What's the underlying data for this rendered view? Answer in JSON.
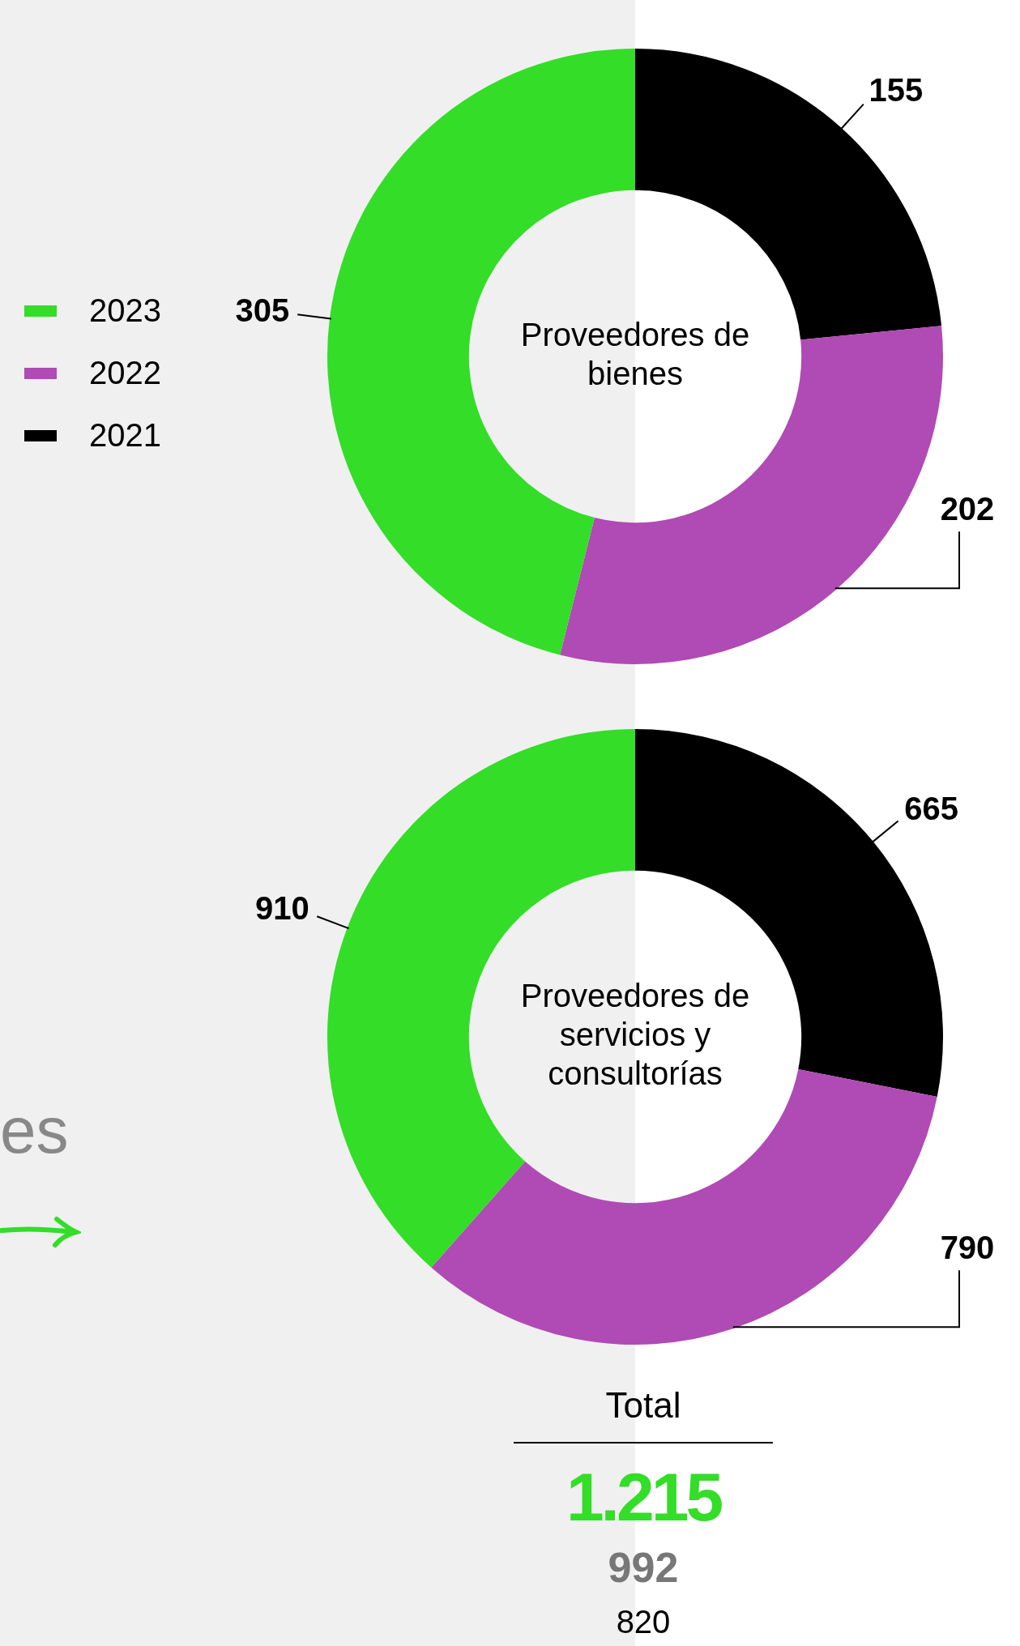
{
  "chart_data": [
    {
      "type": "donut",
      "title": "Proveedores de bienes",
      "categories": [
        "2021",
        "2022",
        "2023"
      ],
      "values": [
        155,
        202,
        305
      ],
      "colors": [
        "#000000",
        "#b04ab4",
        "#33dd28"
      ],
      "data_labels": true,
      "legend": "left"
    },
    {
      "type": "donut",
      "title": "Proveedores de servicios y consultorías",
      "categories": [
        null,
        null,
        null
      ],
      "values": [
        665,
        790,
        910
      ],
      "colors": [
        "#000000",
        "#b04ab4",
        "#33dd28"
      ],
      "data_labels": true,
      "annotations": [
        "es",
        "Total",
        "1.215",
        "992",
        "820"
      ]
    }
  ]
}
